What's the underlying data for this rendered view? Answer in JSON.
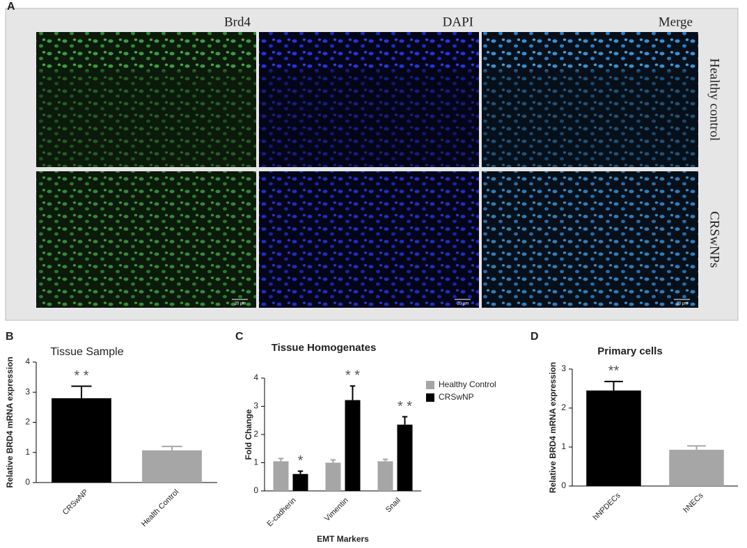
{
  "panel_a": {
    "panel_label": "A",
    "columns": [
      "Brd4",
      "DAPI",
      "Merge"
    ],
    "rows": [
      "Healthy control",
      "CRSwNPs"
    ],
    "scale_bar": "20 μm"
  },
  "chart_data": [
    {
      "type": "bar",
      "panel_label": "B",
      "title": "Tissue Sample",
      "y_label": "Relative BRD4 mRNA expression",
      "categories": [
        "CRSwNP",
        "Health  Control"
      ],
      "values": [
        2.8,
        1.07
      ],
      "errors": [
        0.4,
        0.13
      ],
      "colors": [
        "#000000",
        "#a6a6a6"
      ],
      "annotations": [
        "* *",
        null
      ],
      "ylim": [
        0,
        4
      ],
      "yticks": [
        0,
        1,
        2,
        3,
        4
      ]
    },
    {
      "type": "grouped-bar",
      "panel_label": "C",
      "title": "Tissue Homogenates",
      "y_label": "Fold Change",
      "x_label": "EMT Markers",
      "categories": [
        "E-cadherin",
        "Vimentin",
        "Snail"
      ],
      "series": [
        {
          "name": "Healthy Control",
          "color": "#a6a6a6",
          "values": [
            1.05,
            1.0,
            1.05
          ],
          "errors": [
            0.1,
            0.1,
            0.07
          ]
        },
        {
          "name": "CRSwNP",
          "color": "#000000",
          "values": [
            0.6,
            3.22,
            2.35
          ],
          "errors": [
            0.1,
            0.5,
            0.28
          ]
        }
      ],
      "annotations": [
        "*",
        "* *",
        "* *"
      ],
      "ylim": [
        0,
        4
      ],
      "yticks": [
        0,
        1,
        2,
        3,
        4
      ]
    },
    {
      "type": "bar",
      "panel_label": "D",
      "title": "Primary cells",
      "y_label": "Relative BRD4 mRNA expression",
      "categories": [
        "hNPDECs",
        "hNECs"
      ],
      "values": [
        2.45,
        0.93
      ],
      "errors": [
        0.23,
        0.1
      ],
      "colors": [
        "#000000",
        "#a6a6a6"
      ],
      "annotations": [
        "**",
        null
      ],
      "ylim": [
        0,
        3
      ],
      "yticks": [
        0,
        1,
        2,
        3
      ]
    }
  ]
}
